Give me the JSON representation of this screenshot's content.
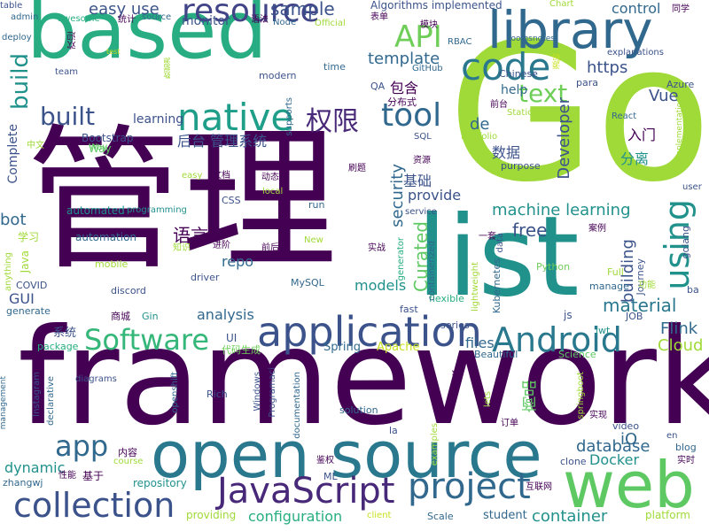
{
  "palette": {
    "dark_purple": "#440154",
    "indigo": "#3b528b",
    "blue": "#31688e",
    "teal": "#21918c",
    "green_teal": "#27ad81",
    "green": "#5ec962",
    "lime": "#90d743",
    "yellow": "#c8e020"
  },
  "words": [
    {
      "text": "framework",
      "color": "#440154"
    },
    {
      "text": "管理",
      "color": "#440154"
    },
    {
      "text": "Go",
      "color": "#a0da39"
    },
    {
      "text": "list",
      "color": "#21918c"
    },
    {
      "text": "based",
      "color": "#27ad81"
    },
    {
      "text": "library",
      "color": "#31688e"
    },
    {
      "text": "open source",
      "color": "#2a788e"
    },
    {
      "text": "web",
      "color": "#5ec962"
    },
    {
      "text": "application",
      "color": "#3b528b"
    },
    {
      "text": "native",
      "color": "#1f9e89"
    },
    {
      "text": "code",
      "color": "#2a788e"
    },
    {
      "text": "resource",
      "color": "#414487"
    },
    {
      "text": "project",
      "color": "#31688e"
    },
    {
      "text": "JavaScript",
      "color": "#482878"
    },
    {
      "text": "collection",
      "color": "#3b528b"
    },
    {
      "text": "Android",
      "color": "#2a788e"
    },
    {
      "text": "Software",
      "color": "#35b779"
    },
    {
      "text": "API",
      "color": "#6ece58"
    },
    {
      "text": "tool",
      "color": "#31688e"
    },
    {
      "text": "using",
      "color": "#21918c"
    },
    {
      "text": "text",
      "color": "#6ece58"
    },
    {
      "text": "权限",
      "color": "#482878"
    },
    {
      "text": "app",
      "color": "#31688e"
    },
    {
      "text": "built",
      "color": "#3b528b"
    },
    {
      "text": "build",
      "color": "#21918c"
    },
    {
      "text": "sample",
      "color": "#3b528b"
    },
    {
      "text": "easy use",
      "color": "#3b528b"
    },
    {
      "text": "machine learning",
      "color": "#21918c"
    },
    {
      "text": "container",
      "color": "#21918c"
    },
    {
      "text": "configuration",
      "color": "#27ad81"
    },
    {
      "text": "repository",
      "color": "#21918c"
    },
    {
      "text": "material",
      "color": "#2a788e"
    },
    {
      "text": "database",
      "color": "#31688e"
    },
    {
      "text": "Docker",
      "color": "#21918c"
    },
    {
      "text": "security",
      "color": "#31688e"
    },
    {
      "text": "Curated",
      "color": "#5ec962"
    },
    {
      "text": "building",
      "color": "#3b528b"
    },
    {
      "text": "Developer",
      "color": "#3b528b"
    },
    {
      "text": "template",
      "color": "#31688e"
    },
    {
      "text": "https",
      "color": "#3b528b"
    },
    {
      "text": "Vue",
      "color": "#3b528b"
    },
    {
      "text": "control",
      "color": "#31688e"
    },
    {
      "text": "free",
      "color": "#3b528b"
    },
    {
      "text": "models",
      "color": "#21918c"
    },
    {
      "text": "GUI",
      "color": "#3b528b"
    },
    {
      "text": "analysis",
      "color": "#31688e"
    },
    {
      "text": "dynamic",
      "color": "#21918c"
    },
    {
      "text": "Flink",
      "color": "#31688e"
    },
    {
      "text": "Cloud",
      "color": "#a0da39"
    },
    {
      "text": "iO",
      "color": "#31688e"
    },
    {
      "text": "files",
      "color": "#31688e"
    },
    {
      "text": "repo",
      "color": "#31688e"
    },
    {
      "text": "provide",
      "color": "#3b528b"
    },
    {
      "text": "bot",
      "color": "#31688e"
    },
    {
      "text": "语言",
      "color": "#440154"
    },
    {
      "text": "数据",
      "color": "#3b528b"
    },
    {
      "text": "商品",
      "color": "#5ec962"
    },
    {
      "text": "基础",
      "color": "#3b528b"
    },
    {
      "text": "包含",
      "color": "#440154"
    },
    {
      "text": "后台 管理系统",
      "color": "#3b528b"
    },
    {
      "text": "分离",
      "color": "#21918c"
    },
    {
      "text": "入门",
      "color": "#440154"
    },
    {
      "text": "learning",
      "color": "#3b528b"
    },
    {
      "text": "help",
      "color": "#31688e"
    },
    {
      "text": "de",
      "color": "#31688e"
    },
    {
      "text": "monitor",
      "color": "#3b528b"
    },
    {
      "text": "automated",
      "color": "#21918c"
    },
    {
      "text": "automation",
      "color": "#31688e"
    },
    {
      "text": "programming",
      "color": "#21918c"
    },
    {
      "text": "Complete",
      "color": "#3b528b"
    },
    {
      "text": "Bootstrap",
      "color": "#3b528b"
    },
    {
      "text": "Way",
      "color": "#5ec962"
    },
    {
      "text": "中文",
      "color": "#a0da39"
    },
    {
      "text": "学习",
      "color": "#a0da39"
    },
    {
      "text": "COVID",
      "color": "#3b528b"
    },
    {
      "text": "generate",
      "color": "#31688e"
    },
    {
      "text": "discord",
      "color": "#3b528b"
    },
    {
      "text": "mobile",
      "color": "#a0da39"
    },
    {
      "text": "Java",
      "color": "#a0da39"
    },
    {
      "text": "anything",
      "color": "#a0da39"
    },
    {
      "text": "driver",
      "color": "#3b528b"
    },
    {
      "text": "MySQL",
      "color": "#31688e"
    },
    {
      "text": "商城",
      "color": "#440154"
    },
    {
      "text": "Gin",
      "color": "#21918c"
    },
    {
      "text": "系统",
      "color": "#3b528b"
    },
    {
      "text": "package",
      "color": "#27ad81"
    },
    {
      "text": "UI",
      "color": "#3b528b"
    },
    {
      "text": "代码生成",
      "color": "#6ece58"
    },
    {
      "text": "Spring",
      "color": "#31688e"
    },
    {
      "text": "Apache",
      "color": "#c8e020"
    },
    {
      "text": "Beautiful",
      "color": "#31688e"
    },
    {
      "text": "Science",
      "color": "#5ec962"
    },
    {
      "text": "series",
      "color": "#3b528b"
    },
    {
      "text": "js",
      "color": "#3b528b"
    },
    {
      "text": "jwt",
      "color": "#21918c"
    },
    {
      "text": "JOB",
      "color": "#3b528b"
    },
    {
      "text": "Python",
      "color": "#6ece58"
    },
    {
      "text": "manage",
      "color": "#31688e"
    },
    {
      "text": "Full",
      "color": "#a0da39"
    },
    {
      "text": "Journey",
      "color": "#3b528b"
    },
    {
      "text": "功能",
      "color": "#a0da39"
    },
    {
      "text": "ba",
      "color": "#3b528b"
    },
    {
      "text": "golang",
      "color": "#3b528b"
    },
    {
      "text": "案例",
      "color": "#440154"
    },
    {
      "text": "fast",
      "color": "#3b528b"
    },
    {
      "text": "flexible",
      "color": "#27ad81"
    },
    {
      "text": "lightweight",
      "color": "#a0da39"
    },
    {
      "text": "Kubernetes",
      "color": "#31688e"
    },
    {
      "text": "data",
      "color": "#3b528b"
    },
    {
      "text": "一套",
      "color": "#440154"
    },
    {
      "text": "containerized",
      "color": "#31688e"
    },
    {
      "text": "generator",
      "color": "#27ad81"
    },
    {
      "text": "service",
      "color": "#3b528b"
    },
    {
      "text": "实战",
      "color": "#440154"
    },
    {
      "text": "New",
      "color": "#a0da39"
    },
    {
      "text": "run",
      "color": "#31688e"
    },
    {
      "text": "前后",
      "color": "#440154"
    },
    {
      "text": "进阶",
      "color": "#440154"
    },
    {
      "text": "知识",
      "color": "#a0da39"
    },
    {
      "text": "local",
      "color": "#a0da39"
    },
    {
      "text": "CSS",
      "color": "#3b528b"
    },
    {
      "text": "easy",
      "color": "#a0da39"
    },
    {
      "text": "文档",
      "color": "#440154"
    },
    {
      "text": "动态",
      "color": "#440154"
    },
    {
      "text": "刷题",
      "color": "#440154"
    },
    {
      "text": "资源",
      "color": "#440154"
    },
    {
      "text": "purpose",
      "color": "#3b528b"
    },
    {
      "text": "Portfolio",
      "color": "#a0da39"
    },
    {
      "text": "SQL",
      "color": "#3b528b"
    },
    {
      "text": "前台",
      "color": "#440154"
    },
    {
      "text": "分布式",
      "color": "#440154"
    },
    {
      "text": "Static",
      "color": "#a0da39"
    },
    {
      "text": "React",
      "color": "#31688e"
    },
    {
      "text": "implementation",
      "color": "#a0da39"
    },
    {
      "text": "user",
      "color": "#3b528b"
    },
    {
      "text": "Azure",
      "color": "#3b528b"
    },
    {
      "text": "para",
      "color": "#3b528b"
    },
    {
      "text": "源码",
      "color": "#c8e020"
    },
    {
      "text": "Chinese",
      "color": "#3b528b"
    },
    {
      "text": "explanations",
      "color": "#3b528b"
    },
    {
      "text": "roomsnotes",
      "color": "#31688e"
    },
    {
      "text": "同学",
      "color": "#440154"
    },
    {
      "text": "Chart",
      "color": "#a0da39"
    },
    {
      "text": "模块",
      "color": "#440154"
    },
    {
      "text": "表单",
      "color": "#440154"
    },
    {
      "text": "RBAC",
      "color": "#31688e"
    },
    {
      "text": "Algorithms implemented",
      "color": "#3b528b"
    },
    {
      "text": "GitHub",
      "color": "#31688e"
    },
    {
      "text": "QA",
      "color": "#3b528b"
    },
    {
      "text": "time",
      "color": "#31688e"
    },
    {
      "text": "modern",
      "color": "#3b528b"
    },
    {
      "text": "supports",
      "color": "#31688e"
    },
    {
      "text": "Node",
      "color": "#31688e"
    },
    {
      "text": "Official",
      "color": "#a0da39"
    },
    {
      "text": "语法",
      "color": "#440154"
    },
    {
      "text": "source",
      "color": "#31688e"
    },
    {
      "text": "统计",
      "color": "#440154"
    },
    {
      "text": "awesome",
      "color": "#27ad81"
    },
    {
      "text": "admin",
      "color": "#31688e"
    },
    {
      "text": "table",
      "color": "#3b528b"
    },
    {
      "text": "deploy",
      "color": "#31688e"
    },
    {
      "text": "欢迎",
      "color": "#440154"
    },
    {
      "text": "team",
      "color": "#3b528b"
    },
    {
      "text": "test",
      "color": "#c8e020"
    },
    {
      "text": "数据源",
      "color": "#a0da39"
    },
    {
      "text": "Way",
      "color": "#5ec962"
    },
    {
      "text": "management",
      "color": "#31688e"
    },
    {
      "text": "Instagram",
      "color": "#3b528b"
    },
    {
      "text": "declarative",
      "color": "#31688e"
    },
    {
      "text": "diagrams",
      "color": "#3b528b"
    },
    {
      "text": "openshift",
      "color": "#31688e"
    },
    {
      "text": "Rich",
      "color": "#3b528b"
    },
    {
      "text": "Windows",
      "color": "#3b528b"
    },
    {
      "text": "Programaci",
      "color": "#3b528b"
    },
    {
      "text": "documentation",
      "color": "#31688e"
    },
    {
      "text": "solution",
      "color": "#31688e"
    },
    {
      "text": "la",
      "color": "#3b528b"
    },
    {
      "text": "算法",
      "color": "#440154"
    },
    {
      "text": "lets",
      "color": "#a0da39"
    },
    {
      "text": "examples",
      "color": "#a0da39"
    },
    {
      "text": "订单",
      "color": "#440154"
    },
    {
      "text": "实现",
      "color": "#440154"
    },
    {
      "text": "video",
      "color": "#3b528b"
    },
    {
      "text": "springboot",
      "color": "#a0da39"
    },
    {
      "text": "en",
      "color": "#3b528b"
    },
    {
      "text": "blog",
      "color": "#31688e"
    },
    {
      "text": "实时",
      "color": "#440154"
    },
    {
      "text": "clone",
      "color": "#3b528b"
    },
    {
      "text": "鉴权",
      "color": "#440154"
    },
    {
      "text": "内容",
      "color": "#440154"
    },
    {
      "text": "course",
      "color": "#a0da39"
    },
    {
      "text": "基于",
      "color": "#440154"
    },
    {
      "text": "性能",
      "color": "#440154"
    },
    {
      "text": "zhangwj",
      "color": "#31688e"
    },
    {
      "text": "ML",
      "color": "#3b528b"
    },
    {
      "text": "providing",
      "color": "#a0da39"
    },
    {
      "text": "client",
      "color": "#c8e020"
    },
    {
      "text": "Scale",
      "color": "#31688e"
    },
    {
      "text": "student",
      "color": "#31688e"
    },
    {
      "text": "互联网",
      "color": "#440154"
    },
    {
      "text": "platform",
      "color": "#a0da39"
    }
  ]
}
